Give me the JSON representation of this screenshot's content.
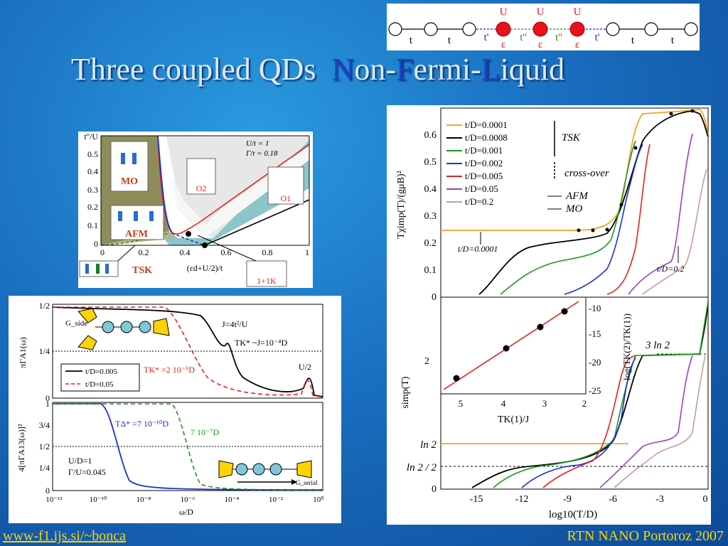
{
  "slide": {
    "title_main": "Three coupled QDs",
    "title_nfl_parts": [
      {
        "cap": "N",
        "rest": "on-"
      },
      {
        "cap": "F",
        "rest": "ermi-"
      },
      {
        "cap": "L",
        "rest": "iquid"
      }
    ],
    "footer_left": "www-f1.ijs.si/~bonca",
    "footer_right": "RTN NANO Portoroz 2007"
  },
  "chain": {
    "hop_labels": [
      "t",
      "t",
      "t'",
      "t''",
      "t''",
      "t'",
      "t",
      "t"
    ],
    "dot_top_label": "U",
    "dot_bottom_label": "ε"
  },
  "phase_diagram": {
    "y_label": "t''/U",
    "x_label": "(εd+U/2)/t",
    "y_ticks": [
      "0",
      "0.1",
      "0.2",
      "0.3",
      "0.4",
      "0.5"
    ],
    "x_ticks": [
      "0",
      "0.2",
      "0.4",
      "0.6",
      "0.8",
      "1"
    ],
    "params": [
      "U/t = 1",
      "Γ/t = 0.18"
    ],
    "regions": [
      "MO",
      "AFM",
      "TSK",
      "O2",
      "O1",
      "1+1K"
    ]
  },
  "spectral": {
    "top_ylabel": "πΓA1(ω)",
    "top_yticks": [
      "1/2",
      "1/4",
      "0"
    ],
    "legend": [
      "t/D=0.005",
      "t/D=0.05"
    ],
    "annotations": [
      "G_side",
      "J=4t²/U",
      "TK* ~J=10⁻⁴D",
      "TK* =2 10⁻⁶D",
      "U/2"
    ],
    "bottom_ylabel": "4[πΓA13(ω)]²",
    "bottom_yticks": [
      "1",
      "3/4",
      "1/2",
      "1/4",
      "0"
    ],
    "bottom_annotations": [
      "TΔ* =7 10⁻¹⁰D",
      "7 10⁻⁷D",
      "U/D=1",
      "Γ/U=0.045",
      "G_serial"
    ],
    "xticks": [
      "10⁻¹²",
      "10⁻¹⁰",
      "10⁻⁸",
      "10⁻⁶",
      "10⁻⁴",
      "10⁻²",
      "10⁰"
    ],
    "xlabel": "ω/D"
  },
  "thermo": {
    "top_ylabel": "Tχimp(T)/(gμB)²",
    "top_yticks": [
      "0.6",
      "0.5",
      "0.4",
      "0.3",
      "0.2",
      "0.1",
      "0"
    ],
    "legend": [
      "t/D=0.0001",
      "t/D=0.0008",
      "t/D=0.001",
      "t/D=0.002",
      "t/D=0.005",
      "t/D=0.05",
      "t/D=0.2"
    ],
    "legend_groups": [
      "TSK",
      "cross-over",
      "AFM",
      "MO"
    ],
    "markers": [
      "t/D=0.0001",
      "t/D=0.2"
    ],
    "bottom_ylabel": "simp(T)",
    "bottom_yticks": [
      "ln 2",
      "ln 2 / 2",
      "0"
    ],
    "xticks": [
      "-15",
      "-12",
      "-9",
      "-6",
      "-3",
      "0"
    ],
    "xlabel": "log10(T/D)",
    "inset": {
      "ylabel": "log(TK(2)/TK(1))",
      "xlabel": "TK(1)/J",
      "yticks": [
        "-10",
        "-15",
        "-20",
        "-25"
      ],
      "xticks": [
        "5",
        "4",
        "3",
        "2"
      ],
      "left_tick": "2",
      "annot": "3 ln 2"
    },
    "colors": {
      "orange": "#f5a623",
      "black": "#000000",
      "green": "#1a9a1a",
      "blue": "#1a2fd8",
      "red": "#e8201a",
      "purple": "#9a3fc8",
      "pink": "#c89aa0"
    }
  }
}
